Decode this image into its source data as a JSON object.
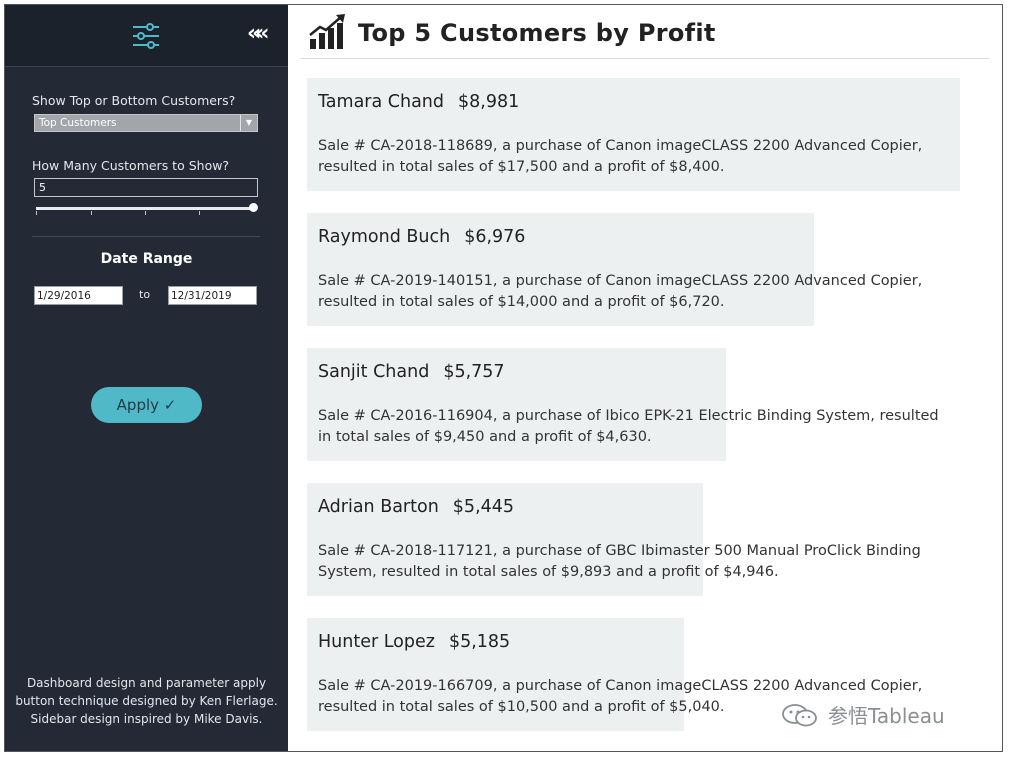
{
  "sidebar": {
    "collapse_glyph": "««",
    "topbottom": {
      "label": "Show Top or Bottom Customers?",
      "value": "Top Customers"
    },
    "howmany": {
      "label": "How Many Customers to Show?",
      "value": "5",
      "slider_fraction": 1.0
    },
    "date_range": {
      "title": "Date Range",
      "start": "1/29/2016",
      "separator": "to",
      "end": "12/31/2019"
    },
    "apply_label": "Apply ✓",
    "credits": [
      "Dashboard design and parameter apply",
      "button technique designed by Ken Flerlage.",
      "Sidebar design inspired by Mike Davis."
    ]
  },
  "main": {
    "title": "Top 5 Customers by Profit",
    "customers": [
      {
        "name": "Tamara Chand",
        "profit": "$8,981",
        "profit_value": 8981,
        "description": "Sale # CA-2018-118689, a purchase of Canon imageCLASS 2200 Advanced Copier, resulted in total sales of $17,500 and a profit of $8,400."
      },
      {
        "name": "Raymond Buch",
        "profit": "$6,976",
        "profit_value": 6976,
        "description": "Sale # CA-2019-140151, a purchase of Canon imageCLASS 2200 Advanced Copier, resulted in total sales of $14,000 and a profit of $6,720."
      },
      {
        "name": "Sanjit Chand",
        "profit": "$5,757",
        "profit_value": 5757,
        "description": "Sale # CA-2016-116904, a purchase of Ibico EPK-21 Electric Binding System, resulted in total sales of $9,450 and a profit of $4,630."
      },
      {
        "name": "Adrian Barton",
        "profit": "$5,445",
        "profit_value": 5445,
        "description": "Sale # CA-2018-117121, a purchase of GBC Ibimaster 500 Manual ProClick Binding System, resulted in total sales of $9,893 and a profit of $4,946."
      },
      {
        "name": "Hunter Lopez",
        "profit": "$5,185",
        "profit_value": 5185,
        "description": "Sale # CA-2019-166709, a purchase of Canon imageCLASS 2200 Advanced Copier, resulted in total sales of $10,500 and a profit of $5,040."
      }
    ]
  },
  "watermark": "参悟Tableau",
  "colors": {
    "sidebar_bg": "#232a35",
    "accent": "#4fb9c8",
    "card_bg": "#edf0f1"
  },
  "icons": {
    "filter": "sliders-icon",
    "collapse": "chevron-double-left-icon",
    "title": "bar-chart-growth-icon",
    "watermark": "wechat-icon"
  }
}
